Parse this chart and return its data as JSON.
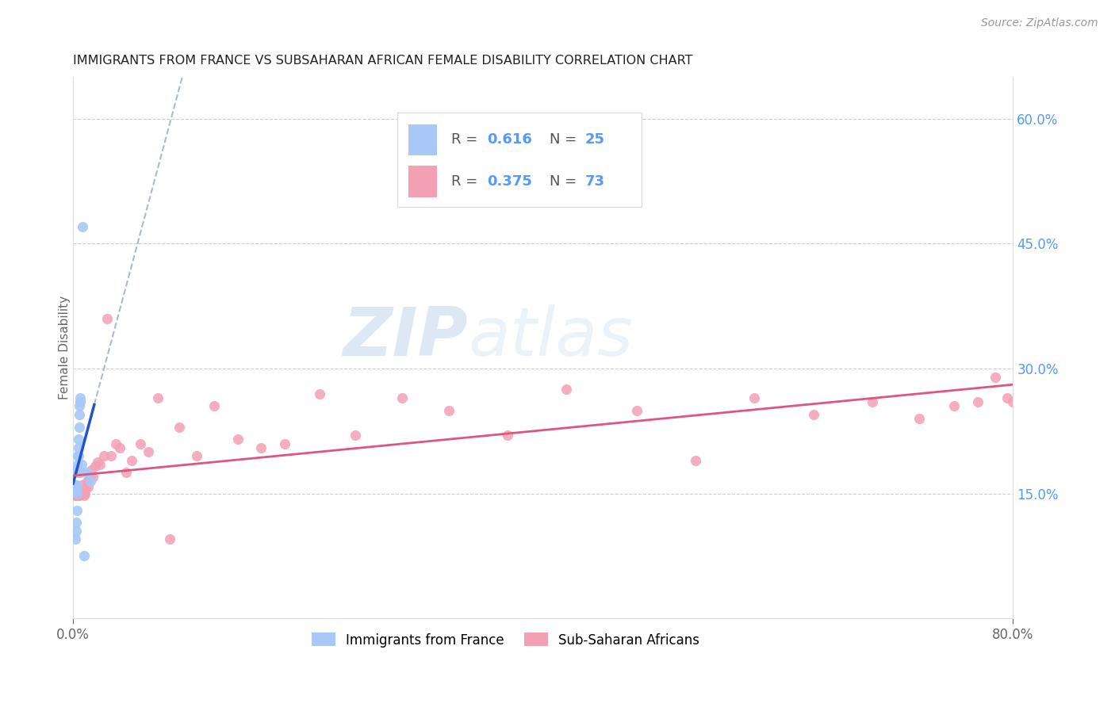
{
  "title": "IMMIGRANTS FROM FRANCE VS SUBSAHARAN AFRICAN FEMALE DISABILITY CORRELATION CHART",
  "source": "Source: ZipAtlas.com",
  "ylabel": "Female Disability",
  "xlim": [
    0.0,
    0.8
  ],
  "ylim": [
    0.0,
    0.65
  ],
  "y_ticks_right": [
    0.15,
    0.3,
    0.45,
    0.6
  ],
  "y_tick_labels_right": [
    "15.0%",
    "30.0%",
    "45.0%",
    "60.0%"
  ],
  "blue_color": "#a8c8f8",
  "pink_color": "#f4a0b4",
  "blue_line_color": "#2255cc",
  "pink_line_color": "#e05580",
  "dashed_line_color": "#aabbcc",
  "watermark_zip": "ZIP",
  "watermark_atlas": "atlas",
  "france_scatter_x": [
    0.002,
    0.0025,
    0.0028,
    0.003,
    0.0032,
    0.0034,
    0.0035,
    0.0036,
    0.0038,
    0.004,
    0.0042,
    0.0044,
    0.0046,
    0.0048,
    0.005,
    0.0052,
    0.0055,
    0.0058,
    0.006,
    0.0065,
    0.007,
    0.008,
    0.009,
    0.012,
    0.015
  ],
  "france_scatter_y": [
    0.095,
    0.115,
    0.105,
    0.13,
    0.155,
    0.15,
    0.16,
    0.175,
    0.18,
    0.185,
    0.195,
    0.195,
    0.205,
    0.215,
    0.23,
    0.245,
    0.255,
    0.26,
    0.265,
    0.175,
    0.185,
    0.47,
    0.075,
    0.175,
    0.165
  ],
  "subsaharan_scatter_x": [
    0.001,
    0.0012,
    0.0015,
    0.0018,
    0.002,
    0.0022,
    0.0024,
    0.0026,
    0.0028,
    0.003,
    0.0032,
    0.0035,
    0.0038,
    0.004,
    0.0042,
    0.0045,
    0.0048,
    0.005,
    0.0052,
    0.0055,
    0.0058,
    0.006,
    0.0065,
    0.007,
    0.0075,
    0.008,
    0.0085,
    0.009,
    0.0095,
    0.01,
    0.011,
    0.012,
    0.013,
    0.014,
    0.0155,
    0.017,
    0.019,
    0.021,
    0.023,
    0.026,
    0.029,
    0.032,
    0.036,
    0.04,
    0.045,
    0.05,
    0.057,
    0.064,
    0.072,
    0.082,
    0.09,
    0.105,
    0.12,
    0.14,
    0.16,
    0.18,
    0.21,
    0.24,
    0.28,
    0.32,
    0.37,
    0.42,
    0.48,
    0.53,
    0.58,
    0.63,
    0.68,
    0.72,
    0.75,
    0.77,
    0.785,
    0.795,
    0.8
  ],
  "subsaharan_scatter_y": [
    0.16,
    0.155,
    0.15,
    0.155,
    0.16,
    0.148,
    0.155,
    0.148,
    0.152,
    0.148,
    0.153,
    0.148,
    0.152,
    0.15,
    0.155,
    0.148,
    0.153,
    0.15,
    0.155,
    0.148,
    0.153,
    0.15,
    0.155,
    0.16,
    0.153,
    0.155,
    0.15,
    0.155,
    0.148,
    0.15,
    0.155,
    0.165,
    0.158,
    0.168,
    0.178,
    0.17,
    0.183,
    0.188,
    0.185,
    0.195,
    0.36,
    0.195,
    0.21,
    0.205,
    0.175,
    0.19,
    0.21,
    0.2,
    0.265,
    0.095,
    0.23,
    0.195,
    0.255,
    0.215,
    0.205,
    0.21,
    0.27,
    0.22,
    0.265,
    0.25,
    0.22,
    0.275,
    0.25,
    0.19,
    0.265,
    0.245,
    0.26,
    0.24,
    0.255,
    0.26,
    0.29,
    0.265,
    0.26
  ]
}
